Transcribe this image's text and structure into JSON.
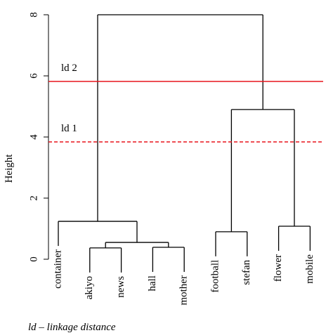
{
  "chart_data": {
    "type": "dendrogram",
    "ylabel": "Height",
    "ylim": [
      0,
      8
    ],
    "yticks": [
      0,
      2,
      4,
      6,
      8
    ],
    "color": "#000000",
    "tree": {
      "height": 8.0,
      "children": [
        {
          "height": 1.24,
          "children": [
            "container",
            {
              "height": 0.55,
              "children": [
                {
                  "height": 0.37,
                  "children": [
                    "akiyo",
                    "news"
                  ]
                },
                {
                  "height": 0.39,
                  "children": [
                    "hall",
                    "mother"
                  ]
                }
              ]
            }
          ]
        },
        {
          "height": 4.9,
          "children": [
            {
              "height": 0.9,
              "children": [
                "football",
                "stefan"
              ]
            },
            {
              "height": 1.08,
              "children": [
                "flower",
                "mobile"
              ]
            }
          ]
        }
      ]
    },
    "lines": [
      {
        "label": "ld 1",
        "value": 3.84,
        "style": "dashed",
        "color": "#e8141c"
      },
      {
        "label": "ld 2",
        "value": 5.82,
        "style": "solid",
        "color": "#e8141c"
      }
    ],
    "note": "ld – linkage distance"
  }
}
